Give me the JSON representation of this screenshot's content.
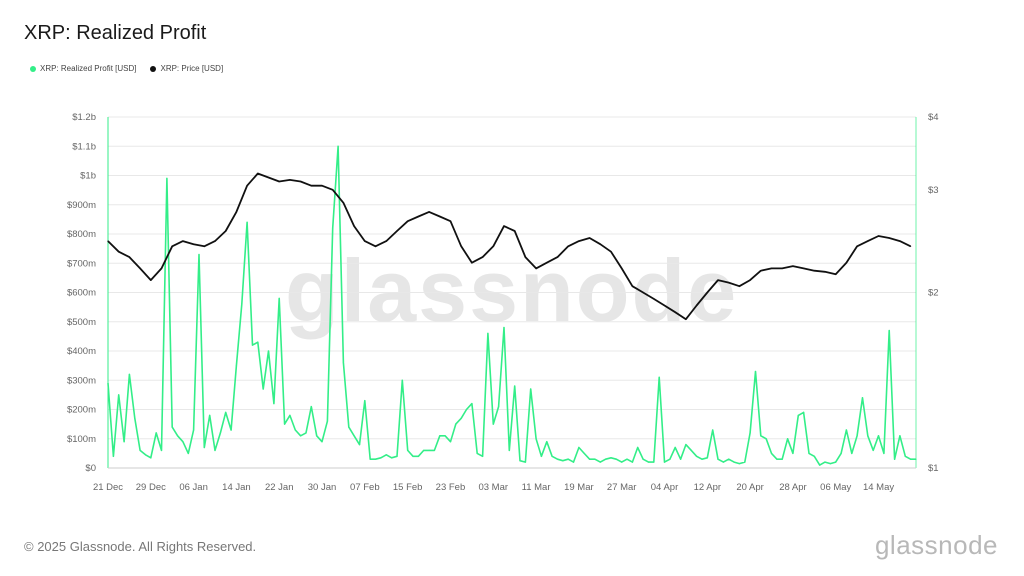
{
  "header": {
    "title": "XRP: Realized Profit"
  },
  "footer": {
    "copyright": "© 2025 Glassnode. All Rights Reserved.",
    "brand": "glassnode"
  },
  "watermark": "glassnode",
  "colors": {
    "profit": "#33ee88",
    "price": "#111111",
    "grid": "#e8e8e8",
    "axis": "#888888"
  },
  "chart_data": {
    "type": "line",
    "title": "XRP: Realized Profit",
    "legend": [
      {
        "name": "XRP: Realized Profit [USD]",
        "color": "#33ee88"
      },
      {
        "name": "XRP: Price [USD]",
        "color": "#111111"
      }
    ],
    "legend_placement": "top-left",
    "grid": true,
    "x_start": "2024-12-21",
    "x_end": "2025-05-21",
    "x_ticks": [
      "21 Dec",
      "29 Dec",
      "06 Jan",
      "14 Jan",
      "22 Jan",
      "30 Jan",
      "07 Feb",
      "15 Feb",
      "23 Feb",
      "03 Mar",
      "11 Mar",
      "19 Mar",
      "27 Mar",
      "04 Apr",
      "12 Apr",
      "20 Apr",
      "28 Apr",
      "06 May",
      "14 May"
    ],
    "y_left": {
      "ticks": [
        "$0",
        "$100m",
        "$200m",
        "$300m",
        "$400m",
        "$500m",
        "$600m",
        "$700m",
        "$800m",
        "$900m",
        "$1b",
        "$1.1b",
        "$1.2b"
      ],
      "range": [
        0,
        1200
      ],
      "unit": "USD millions"
    },
    "y_right": {
      "ticks": [
        "$1",
        "$2",
        "$3",
        "$4"
      ],
      "range": [
        1,
        4
      ],
      "scale": "log"
    },
    "series": [
      {
        "name": "XRP: Realized Profit [USD]",
        "axis": "left",
        "unit": "USD millions",
        "values": [
          [
            "2024-12-21",
            290
          ],
          [
            "2024-12-22",
            40
          ],
          [
            "2024-12-23",
            250
          ],
          [
            "2024-12-24",
            90
          ],
          [
            "2024-12-25",
            320
          ],
          [
            "2024-12-26",
            170
          ],
          [
            "2024-12-27",
            60
          ],
          [
            "2024-12-28",
            45
          ],
          [
            "2024-12-29",
            35
          ],
          [
            "2024-12-30",
            120
          ],
          [
            "2024-12-31",
            60
          ],
          [
            "2025-01-01",
            990
          ],
          [
            "2025-01-02",
            140
          ],
          [
            "2025-01-03",
            110
          ],
          [
            "2025-01-04",
            90
          ],
          [
            "2025-01-05",
            50
          ],
          [
            "2025-01-06",
            130
          ],
          [
            "2025-01-07",
            730
          ],
          [
            "2025-01-08",
            70
          ],
          [
            "2025-01-09",
            180
          ],
          [
            "2025-01-10",
            60
          ],
          [
            "2025-01-11",
            120
          ],
          [
            "2025-01-12",
            190
          ],
          [
            "2025-01-13",
            130
          ],
          [
            "2025-01-14",
            350
          ],
          [
            "2025-01-15",
            560
          ],
          [
            "2025-01-16",
            840
          ],
          [
            "2025-01-17",
            420
          ],
          [
            "2025-01-18",
            430
          ],
          [
            "2025-01-19",
            270
          ],
          [
            "2025-01-20",
            400
          ],
          [
            "2025-01-21",
            220
          ],
          [
            "2025-01-22",
            580
          ],
          [
            "2025-01-23",
            150
          ],
          [
            "2025-01-24",
            180
          ],
          [
            "2025-01-25",
            130
          ],
          [
            "2025-01-26",
            110
          ],
          [
            "2025-01-27",
            120
          ],
          [
            "2025-01-28",
            210
          ],
          [
            "2025-01-29",
            110
          ],
          [
            "2025-01-30",
            90
          ],
          [
            "2025-01-31",
            160
          ],
          [
            "2025-02-01",
            820
          ],
          [
            "2025-02-02",
            1100
          ],
          [
            "2025-02-03",
            360
          ],
          [
            "2025-02-04",
            140
          ],
          [
            "2025-02-05",
            110
          ],
          [
            "2025-02-06",
            80
          ],
          [
            "2025-02-07",
            230
          ],
          [
            "2025-02-08",
            30
          ],
          [
            "2025-02-09",
            30
          ],
          [
            "2025-02-10",
            35
          ],
          [
            "2025-02-11",
            45
          ],
          [
            "2025-02-12",
            35
          ],
          [
            "2025-02-13",
            40
          ],
          [
            "2025-02-14",
            300
          ],
          [
            "2025-02-15",
            60
          ],
          [
            "2025-02-16",
            40
          ],
          [
            "2025-02-17",
            40
          ],
          [
            "2025-02-18",
            60
          ],
          [
            "2025-02-19",
            60
          ],
          [
            "2025-02-20",
            60
          ],
          [
            "2025-02-21",
            110
          ],
          [
            "2025-02-22",
            110
          ],
          [
            "2025-02-23",
            90
          ],
          [
            "2025-02-24",
            150
          ],
          [
            "2025-02-25",
            170
          ],
          [
            "2025-02-26",
            200
          ],
          [
            "2025-02-27",
            220
          ],
          [
            "2025-02-28",
            50
          ],
          [
            "2025-03-01",
            40
          ],
          [
            "2025-03-02",
            460
          ],
          [
            "2025-03-03",
            150
          ],
          [
            "2025-03-04",
            210
          ],
          [
            "2025-03-05",
            480
          ],
          [
            "2025-03-06",
            60
          ],
          [
            "2025-03-07",
            280
          ],
          [
            "2025-03-08",
            25
          ],
          [
            "2025-03-09",
            20
          ],
          [
            "2025-03-10",
            270
          ],
          [
            "2025-03-11",
            100
          ],
          [
            "2025-03-12",
            40
          ],
          [
            "2025-03-13",
            90
          ],
          [
            "2025-03-14",
            40
          ],
          [
            "2025-03-15",
            30
          ],
          [
            "2025-03-16",
            25
          ],
          [
            "2025-03-17",
            30
          ],
          [
            "2025-03-18",
            20
          ],
          [
            "2025-03-19",
            70
          ],
          [
            "2025-03-20",
            50
          ],
          [
            "2025-03-21",
            30
          ],
          [
            "2025-03-22",
            30
          ],
          [
            "2025-03-23",
            20
          ],
          [
            "2025-03-24",
            30
          ],
          [
            "2025-03-25",
            35
          ],
          [
            "2025-03-26",
            30
          ],
          [
            "2025-03-27",
            20
          ],
          [
            "2025-03-28",
            30
          ],
          [
            "2025-03-29",
            20
          ],
          [
            "2025-03-30",
            70
          ],
          [
            "2025-03-31",
            30
          ],
          [
            "2025-04-01",
            20
          ],
          [
            "2025-04-02",
            20
          ],
          [
            "2025-04-03",
            310
          ],
          [
            "2025-04-04",
            20
          ],
          [
            "2025-04-05",
            30
          ],
          [
            "2025-04-06",
            70
          ],
          [
            "2025-04-07",
            30
          ],
          [
            "2025-04-08",
            80
          ],
          [
            "2025-04-09",
            60
          ],
          [
            "2025-04-10",
            40
          ],
          [
            "2025-04-11",
            30
          ],
          [
            "2025-04-12",
            35
          ],
          [
            "2025-04-13",
            130
          ],
          [
            "2025-04-14",
            30
          ],
          [
            "2025-04-15",
            20
          ],
          [
            "2025-04-16",
            30
          ],
          [
            "2025-04-17",
            20
          ],
          [
            "2025-04-18",
            15
          ],
          [
            "2025-04-19",
            20
          ],
          [
            "2025-04-20",
            120
          ],
          [
            "2025-04-21",
            330
          ],
          [
            "2025-04-22",
            110
          ],
          [
            "2025-04-23",
            100
          ],
          [
            "2025-04-24",
            50
          ],
          [
            "2025-04-25",
            30
          ],
          [
            "2025-04-26",
            30
          ],
          [
            "2025-04-27",
            100
          ],
          [
            "2025-04-28",
            50
          ],
          [
            "2025-04-29",
            180
          ],
          [
            "2025-04-30",
            190
          ],
          [
            "2025-05-01",
            50
          ],
          [
            "2025-05-02",
            40
          ],
          [
            "2025-05-03",
            10
          ],
          [
            "2025-05-04",
            20
          ],
          [
            "2025-05-05",
            15
          ],
          [
            "2025-05-06",
            20
          ],
          [
            "2025-05-07",
            50
          ],
          [
            "2025-05-08",
            130
          ],
          [
            "2025-05-09",
            50
          ],
          [
            "2025-05-10",
            110
          ],
          [
            "2025-05-11",
            240
          ],
          [
            "2025-05-12",
            110
          ],
          [
            "2025-05-13",
            60
          ],
          [
            "2025-05-14",
            110
          ],
          [
            "2025-05-15",
            50
          ],
          [
            "2025-05-16",
            470
          ],
          [
            "2025-05-17",
            30
          ],
          [
            "2025-05-18",
            110
          ],
          [
            "2025-05-19",
            40
          ],
          [
            "2025-05-20",
            30
          ],
          [
            "2025-05-21",
            30
          ]
        ]
      },
      {
        "name": "XRP: Price [USD]",
        "axis": "right",
        "unit": "USD",
        "values": [
          [
            "2024-12-21",
            2.45
          ],
          [
            "2024-12-23",
            2.35
          ],
          [
            "2024-12-25",
            2.3
          ],
          [
            "2024-12-27",
            2.2
          ],
          [
            "2024-12-29",
            2.1
          ],
          [
            "2024-12-31",
            2.2
          ],
          [
            "2025-01-02",
            2.4
          ],
          [
            "2025-01-04",
            2.45
          ],
          [
            "2025-01-06",
            2.42
          ],
          [
            "2025-01-08",
            2.4
          ],
          [
            "2025-01-10",
            2.45
          ],
          [
            "2025-01-12",
            2.55
          ],
          [
            "2025-01-14",
            2.75
          ],
          [
            "2025-01-16",
            3.05
          ],
          [
            "2025-01-18",
            3.2
          ],
          [
            "2025-01-20",
            3.15
          ],
          [
            "2025-01-22",
            3.1
          ],
          [
            "2025-01-24",
            3.12
          ],
          [
            "2025-01-26",
            3.1
          ],
          [
            "2025-01-28",
            3.05
          ],
          [
            "2025-01-30",
            3.05
          ],
          [
            "2025-02-01",
            3.0
          ],
          [
            "2025-02-03",
            2.85
          ],
          [
            "2025-02-05",
            2.6
          ],
          [
            "2025-02-07",
            2.45
          ],
          [
            "2025-02-09",
            2.4
          ],
          [
            "2025-02-11",
            2.45
          ],
          [
            "2025-02-13",
            2.55
          ],
          [
            "2025-02-15",
            2.65
          ],
          [
            "2025-02-17",
            2.7
          ],
          [
            "2025-02-19",
            2.75
          ],
          [
            "2025-02-21",
            2.7
          ],
          [
            "2025-02-23",
            2.65
          ],
          [
            "2025-02-25",
            2.4
          ],
          [
            "2025-02-27",
            2.25
          ],
          [
            "2025-03-01",
            2.3
          ],
          [
            "2025-03-03",
            2.4
          ],
          [
            "2025-03-05",
            2.6
          ],
          [
            "2025-03-07",
            2.55
          ],
          [
            "2025-03-09",
            2.3
          ],
          [
            "2025-03-11",
            2.2
          ],
          [
            "2025-03-13",
            2.25
          ],
          [
            "2025-03-15",
            2.3
          ],
          [
            "2025-03-17",
            2.4
          ],
          [
            "2025-03-19",
            2.45
          ],
          [
            "2025-03-21",
            2.48
          ],
          [
            "2025-03-23",
            2.42
          ],
          [
            "2025-03-25",
            2.35
          ],
          [
            "2025-03-27",
            2.2
          ],
          [
            "2025-03-29",
            2.05
          ],
          [
            "2025-03-31",
            2.0
          ],
          [
            "2025-04-02",
            1.95
          ],
          [
            "2025-04-04",
            1.9
          ],
          [
            "2025-04-06",
            1.85
          ],
          [
            "2025-04-08",
            1.8
          ],
          [
            "2025-04-10",
            1.9
          ],
          [
            "2025-04-12",
            2.0
          ],
          [
            "2025-04-14",
            2.1
          ],
          [
            "2025-04-16",
            2.08
          ],
          [
            "2025-04-18",
            2.05
          ],
          [
            "2025-04-20",
            2.1
          ],
          [
            "2025-04-22",
            2.18
          ],
          [
            "2025-04-24",
            2.2
          ],
          [
            "2025-04-26",
            2.2
          ],
          [
            "2025-04-28",
            2.22
          ],
          [
            "2025-04-30",
            2.2
          ],
          [
            "2025-05-02",
            2.18
          ],
          [
            "2025-05-04",
            2.17
          ],
          [
            "2025-05-06",
            2.15
          ],
          [
            "2025-05-08",
            2.25
          ],
          [
            "2025-05-10",
            2.4
          ],
          [
            "2025-05-12",
            2.45
          ],
          [
            "2025-05-14",
            2.5
          ],
          [
            "2025-05-16",
            2.48
          ],
          [
            "2025-05-18",
            2.45
          ],
          [
            "2025-05-20",
            2.4
          ]
        ]
      }
    ]
  }
}
